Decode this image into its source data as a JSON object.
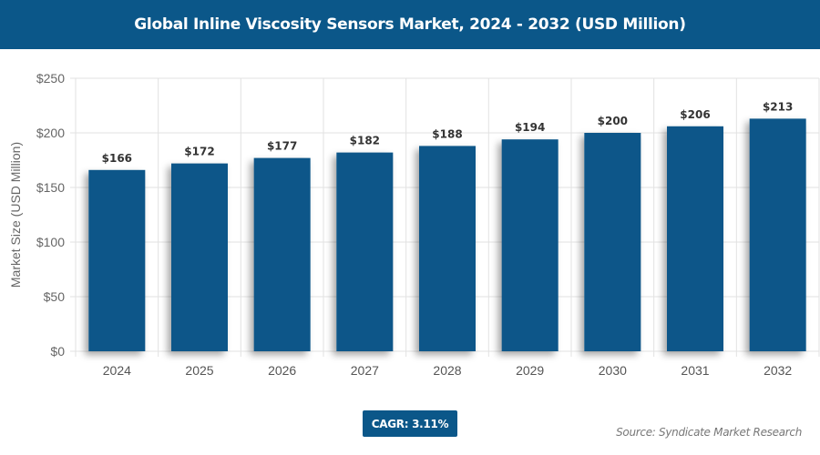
{
  "chart_data": {
    "type": "bar",
    "title": "Global Inline Viscosity Sensors Market, 2024 - 2032 (USD Million)",
    "xlabel": "",
    "ylabel": "Market Size (USD Million)",
    "categories": [
      "2024",
      "2025",
      "2026",
      "2027",
      "2028",
      "2029",
      "2030",
      "2031",
      "2032"
    ],
    "values": [
      166,
      172,
      177,
      182,
      188,
      194,
      200,
      206,
      213
    ],
    "data_labels": [
      "$166",
      "$172",
      "$177",
      "$182",
      "$188",
      "$194",
      "$200",
      "$206",
      "$213"
    ],
    "ylim": [
      0,
      250
    ],
    "yticks": [
      0,
      50,
      100,
      150,
      200,
      250
    ],
    "ytick_labels": [
      "$0",
      "$50",
      "$100",
      "$150",
      "$200",
      "$250"
    ],
    "grid": true,
    "bar_color": "#0b5789"
  },
  "footer": {
    "cagr": "CAGR: 3.11%",
    "source": "Source: Syndicate Market Research"
  }
}
